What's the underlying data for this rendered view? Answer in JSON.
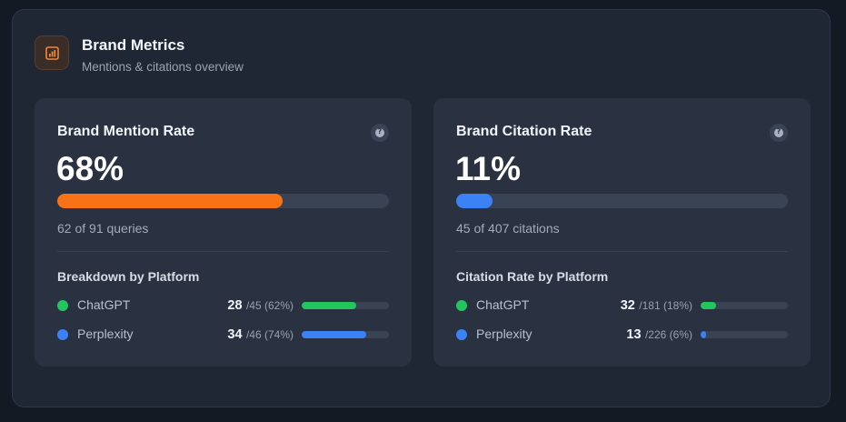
{
  "header": {
    "icon": "bar-chart-icon",
    "title": "Brand Metrics",
    "subtitle": "Mentions & citations overview",
    "accent": "#f0863a"
  },
  "cards": [
    {
      "title": "Brand Mention Rate",
      "help_icon": "question-circle-icon",
      "value": "68%",
      "progress": 0.68,
      "progress_color": "#f97316",
      "subtext": "62 of 91 queries",
      "breakdown_title": "Breakdown by Platform",
      "platforms": [
        {
          "name": "ChatGPT",
          "count": "28",
          "detail": "/45 (62%)",
          "progress": 0.62,
          "color": "#22c55e"
        },
        {
          "name": "Perplexity",
          "count": "34",
          "detail": "/46 (74%)",
          "progress": 0.74,
          "color": "#3b82f6"
        }
      ]
    },
    {
      "title": "Brand Citation Rate",
      "help_icon": "question-circle-icon",
      "value": "11%",
      "progress": 0.11,
      "progress_color": "#3b82f6",
      "subtext": "45 of 407 citations",
      "breakdown_title": "Citation Rate by Platform",
      "platforms": [
        {
          "name": "ChatGPT",
          "count": "32",
          "detail": "/181 (18%)",
          "progress": 0.18,
          "color": "#22c55e"
        },
        {
          "name": "Perplexity",
          "count": "13",
          "detail": "/226 (6%)",
          "progress": 0.06,
          "color": "#3b82f6"
        }
      ]
    }
  ]
}
